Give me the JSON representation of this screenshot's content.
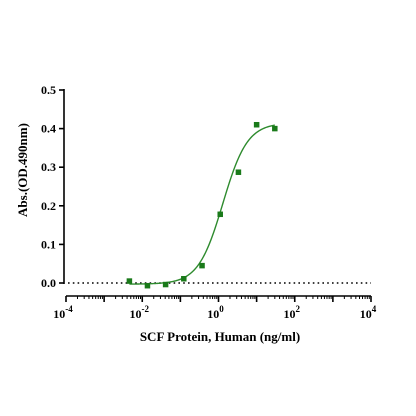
{
  "chart_data": {
    "type": "scatter",
    "title": "",
    "xlabel": "SCF Protein, Human  (ng/ml)",
    "ylabel": "Abs.(OD.490nm)",
    "x_scale": "log10",
    "xlim": [
      0.0001,
      10000
    ],
    "ylim": [
      0,
      0.5
    ],
    "x_ticks": [
      {
        "base": "10",
        "exp": "-4"
      },
      {
        "base": "10",
        "exp": "-2"
      },
      {
        "base": "10",
        "exp": "0"
      },
      {
        "base": "10",
        "exp": "2"
      },
      {
        "base": "10",
        "exp": "4"
      }
    ],
    "y_ticks": [
      "0.0",
      "0.1",
      "0.2",
      "0.3",
      "0.4",
      "0.5"
    ],
    "y_tick_values": [
      0,
      0.1,
      0.2,
      0.3,
      0.4,
      0.5
    ],
    "grid": false,
    "baseline_dotted_at_y": 0,
    "colors": {
      "marker": "#1a7a1a",
      "curve": "#2e8b2e",
      "axis": "#000000"
    },
    "series": [
      {
        "points": [
          {
            "x": 0.0046,
            "y": 0.005
          },
          {
            "x": 0.0137,
            "y": -0.007
          },
          {
            "x": 0.041,
            "y": -0.004
          },
          {
            "x": 0.123,
            "y": 0.011
          },
          {
            "x": 0.37,
            "y": 0.045
          },
          {
            "x": 1.11,
            "y": 0.178
          },
          {
            "x": 3.33,
            "y": 0.287
          },
          {
            "x": 10,
            "y": 0.41
          },
          {
            "x": 30,
            "y": 0.4
          }
        ]
      }
    ],
    "fit_curve": {
      "model": "4PL",
      "bottom": -0.003,
      "top": 0.415,
      "ec50": 1.3,
      "hill": 1.35
    }
  }
}
